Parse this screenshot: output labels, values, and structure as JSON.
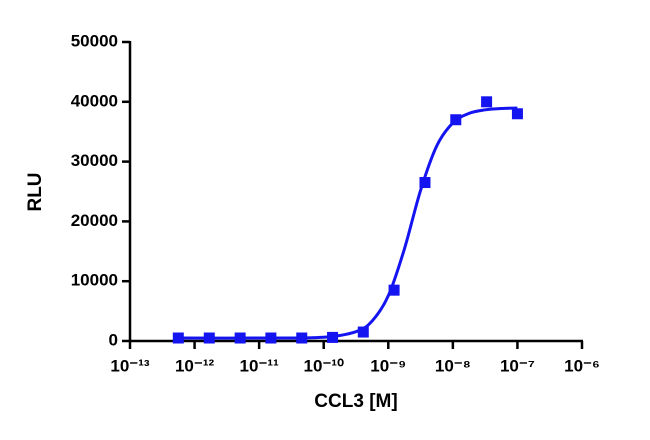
{
  "chart_data": {
    "type": "scatter",
    "xlabel": "CCL3 [M]",
    "ylabel": "RLU",
    "xscale": "log",
    "xlim": [
      1e-13,
      1e-06
    ],
    "xticks": [
      {
        "value": 1e-13,
        "label": "10⁻¹³"
      },
      {
        "value": 1e-12,
        "label": "10⁻¹²"
      },
      {
        "value": 1e-11,
        "label": "10⁻¹¹"
      },
      {
        "value": 1e-10,
        "label": "10⁻¹⁰"
      },
      {
        "value": 1e-09,
        "label": "10⁻⁹"
      },
      {
        "value": 1e-08,
        "label": "10⁻⁸"
      },
      {
        "value": 1e-07,
        "label": "10⁻⁷"
      },
      {
        "value": 1e-06,
        "label": "10⁻⁶"
      }
    ],
    "ylim": [
      0,
      50000
    ],
    "yticks": [
      0,
      10000,
      20000,
      30000,
      40000,
      50000
    ],
    "series": [
      {
        "color": "#1414f0",
        "x": [
          5.6e-13,
          1.69e-12,
          5.08e-12,
          1.52e-11,
          4.57e-11,
          1.37e-10,
          4.1e-10,
          1.23e-09,
          3.7e-09,
          1.11e-08,
          3.33e-08,
          1e-07
        ],
        "values": [
          500,
          500,
          500,
          500,
          500,
          600,
          1500,
          8500,
          26500,
          37000,
          40000,
          38000
        ]
      }
    ],
    "curve": {
      "color": "#1414f0",
      "x": [
        5.6e-13,
        1e-11,
        1e-10,
        3.16e-10,
        5.62e-10,
        1e-09,
        1.78e-09,
        3.16e-09,
        5.62e-09,
        1e-08,
        1.78e-08,
        3.16e-08,
        5.62e-08,
        1e-07
      ],
      "values": [
        500,
        500,
        636,
        1560,
        3350,
        7560,
        15420,
        25180,
        32610,
        36470,
        38060,
        38660,
        38880,
        38950
      ]
    }
  }
}
